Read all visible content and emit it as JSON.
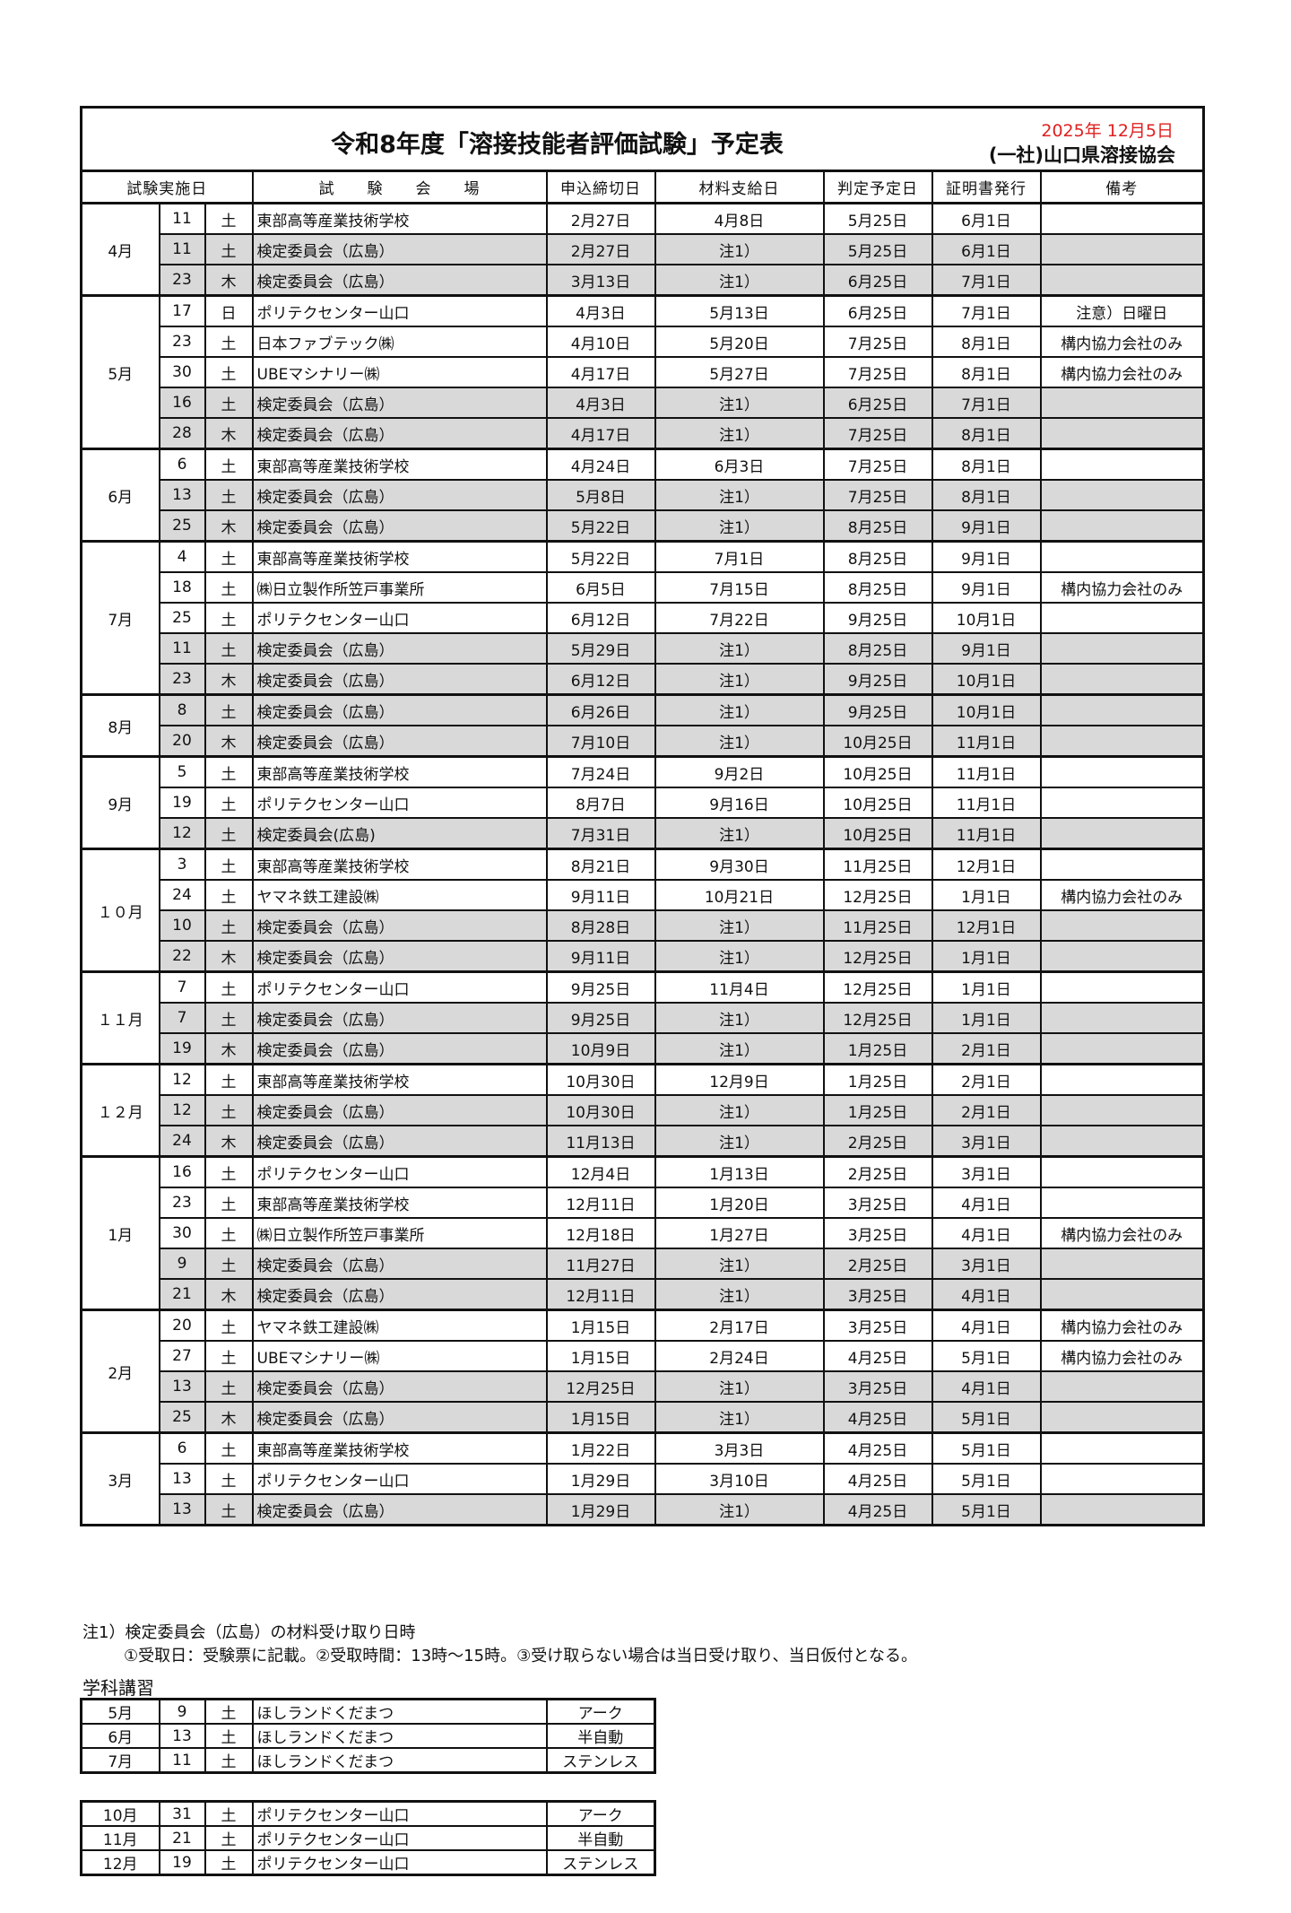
{
  "header": {
    "title": "令和8年度「溶接技能者評価試験」予定表",
    "date": "2025年 12月5日",
    "organization": "(一社)山口県溶接協会"
  },
  "columns": {
    "date": "試験実施日",
    "venue": "試　　験　　会　　場",
    "deadline": "申込締切日",
    "material": "材料支給日",
    "judgment": "判定予定日",
    "certificate": "証明書発行",
    "remarks": "備考"
  },
  "colors": {
    "date_red": "#e02020",
    "shade": "#d9d9d9"
  },
  "schedule": [
    {
      "month": "4月",
      "rows": [
        {
          "day": "11",
          "dow": "土",
          "venue": "東部高等産業技術学校",
          "deadline": "2月27日",
          "material": "4月8日",
          "judgment": "5月25日",
          "certificate": "6月1日",
          "remarks": "",
          "shaded": false
        },
        {
          "day": "11",
          "dow": "土",
          "venue": "検定委員会（広島）",
          "deadline": "2月27日",
          "material": "注1）",
          "judgment": "5月25日",
          "certificate": "6月1日",
          "remarks": "",
          "shaded": true
        },
        {
          "day": "23",
          "dow": "木",
          "venue": "検定委員会（広島）",
          "deadline": "3月13日",
          "material": "注1）",
          "judgment": "6月25日",
          "certificate": "7月1日",
          "remarks": "",
          "shaded": true
        }
      ]
    },
    {
      "month": "5月",
      "rows": [
        {
          "day": "17",
          "dow": "日",
          "venue": "ポリテクセンター山口",
          "deadline": "4月3日",
          "material": "5月13日",
          "judgment": "6月25日",
          "certificate": "7月1日",
          "remarks": "注意）日曜日",
          "shaded": false
        },
        {
          "day": "23",
          "dow": "土",
          "venue": "日本ファブテック㈱",
          "deadline": "4月10日",
          "material": "5月20日",
          "judgment": "7月25日",
          "certificate": "8月1日",
          "remarks": "構内協力会社のみ",
          "shaded": false
        },
        {
          "day": "30",
          "dow": "土",
          "venue": "UBEマシナリー㈱",
          "deadline": "4月17日",
          "material": "5月27日",
          "judgment": "7月25日",
          "certificate": "8月1日",
          "remarks": "構内協力会社のみ",
          "shaded": false
        },
        {
          "day": "16",
          "dow": "土",
          "venue": "検定委員会（広島）",
          "deadline": "4月3日",
          "material": "注1）",
          "judgment": "6月25日",
          "certificate": "7月1日",
          "remarks": "",
          "shaded": true
        },
        {
          "day": "28",
          "dow": "木",
          "venue": "検定委員会（広島）",
          "deadline": "4月17日",
          "material": "注1）",
          "judgment": "7月25日",
          "certificate": "8月1日",
          "remarks": "",
          "shaded": true
        }
      ]
    },
    {
      "month": "6月",
      "rows": [
        {
          "day": "6",
          "dow": "土",
          "venue": "東部高等産業技術学校",
          "deadline": "4月24日",
          "material": "6月3日",
          "judgment": "7月25日",
          "certificate": "8月1日",
          "remarks": "",
          "shaded": false
        },
        {
          "day": "13",
          "dow": "土",
          "venue": "検定委員会（広島）",
          "deadline": "5月8日",
          "material": "注1）",
          "judgment": "7月25日",
          "certificate": "8月1日",
          "remarks": "",
          "shaded": true
        },
        {
          "day": "25",
          "dow": "木",
          "venue": "検定委員会（広島）",
          "deadline": "5月22日",
          "material": "注1）",
          "judgment": "8月25日",
          "certificate": "9月1日",
          "remarks": "",
          "shaded": true
        }
      ]
    },
    {
      "month": "7月",
      "rows": [
        {
          "day": "4",
          "dow": "土",
          "venue": "東部高等産業技術学校",
          "deadline": "5月22日",
          "material": "7月1日",
          "judgment": "8月25日",
          "certificate": "9月1日",
          "remarks": "",
          "shaded": false
        },
        {
          "day": "18",
          "dow": "土",
          "venue": "㈱日立製作所笠戸事業所",
          "deadline": "6月5日",
          "material": "7月15日",
          "judgment": "8月25日",
          "certificate": "9月1日",
          "remarks": "構内協力会社のみ",
          "shaded": false
        },
        {
          "day": "25",
          "dow": "土",
          "venue": "ポリテクセンター山口",
          "deadline": "6月12日",
          "material": "7月22日",
          "judgment": "9月25日",
          "certificate": "10月1日",
          "remarks": "",
          "shaded": false
        },
        {
          "day": "11",
          "dow": "土",
          "venue": "検定委員会（広島）",
          "deadline": "5月29日",
          "material": "注1）",
          "judgment": "8月25日",
          "certificate": "9月1日",
          "remarks": "",
          "shaded": true
        },
        {
          "day": "23",
          "dow": "木",
          "venue": "検定委員会（広島）",
          "deadline": "6月12日",
          "material": "注1）",
          "judgment": "9月25日",
          "certificate": "10月1日",
          "remarks": "",
          "shaded": true
        }
      ]
    },
    {
      "month": "8月",
      "rows": [
        {
          "day": "8",
          "dow": "土",
          "venue": "検定委員会（広島）",
          "deadline": "6月26日",
          "material": "注1）",
          "judgment": "9月25日",
          "certificate": "10月1日",
          "remarks": "",
          "shaded": true
        },
        {
          "day": "20",
          "dow": "木",
          "venue": "検定委員会（広島）",
          "deadline": "7月10日",
          "material": "注1）",
          "judgment": "10月25日",
          "certificate": "11月1日",
          "remarks": "",
          "shaded": true
        }
      ]
    },
    {
      "month": "9月",
      "rows": [
        {
          "day": "5",
          "dow": "土",
          "venue": "東部高等産業技術学校",
          "deadline": "7月24日",
          "material": "9月2日",
          "judgment": "10月25日",
          "certificate": "11月1日",
          "remarks": "",
          "shaded": false
        },
        {
          "day": "19",
          "dow": "土",
          "venue": "ポリテクセンター山口",
          "deadline": "8月7日",
          "material": "9月16日",
          "judgment": "10月25日",
          "certificate": "11月1日",
          "remarks": "",
          "shaded": false
        },
        {
          "day": "12",
          "dow": "土",
          "venue": "検定委員会(広島)",
          "deadline": "7月31日",
          "material": "注1）",
          "judgment": "10月25日",
          "certificate": "11月1日",
          "remarks": "",
          "shaded": true
        }
      ]
    },
    {
      "month": "１０月",
      "rows": [
        {
          "day": "3",
          "dow": "土",
          "venue": "東部高等産業技術学校",
          "deadline": "8月21日",
          "material": "9月30日",
          "judgment": "11月25日",
          "certificate": "12月1日",
          "remarks": "",
          "shaded": false
        },
        {
          "day": "24",
          "dow": "土",
          "venue": "ヤマネ鉄工建設㈱",
          "deadline": "9月11日",
          "material": "10月21日",
          "judgment": "12月25日",
          "certificate": "1月1日",
          "remarks": "構内協力会社のみ",
          "shaded": false
        },
        {
          "day": "10",
          "dow": "土",
          "venue": "検定委員会（広島）",
          "deadline": "8月28日",
          "material": "注1）",
          "judgment": "11月25日",
          "certificate": "12月1日",
          "remarks": "",
          "shaded": true
        },
        {
          "day": "22",
          "dow": "木",
          "venue": "検定委員会（広島）",
          "deadline": "9月11日",
          "material": "注1）",
          "judgment": "12月25日",
          "certificate": "1月1日",
          "remarks": "",
          "shaded": true
        }
      ]
    },
    {
      "month": "１１月",
      "rows": [
        {
          "day": "7",
          "dow": "土",
          "venue": "ポリテクセンター山口",
          "deadline": "9月25日",
          "material": "11月4日",
          "judgment": "12月25日",
          "certificate": "1月1日",
          "remarks": "",
          "shaded": false
        },
        {
          "day": "7",
          "dow": "土",
          "venue": "検定委員会（広島）",
          "deadline": "9月25日",
          "material": "注1）",
          "judgment": "12月25日",
          "certificate": "1月1日",
          "remarks": "",
          "shaded": true
        },
        {
          "day": "19",
          "dow": "木",
          "venue": "検定委員会（広島）",
          "deadline": "10月9日",
          "material": "注1）",
          "judgment": "1月25日",
          "certificate": "2月1日",
          "remarks": "",
          "shaded": true
        }
      ]
    },
    {
      "month": "１２月",
      "rows": [
        {
          "day": "12",
          "dow": "土",
          "venue": "東部高等産業技術学校",
          "deadline": "10月30日",
          "material": "12月9日",
          "judgment": "1月25日",
          "certificate": "2月1日",
          "remarks": "",
          "shaded": false
        },
        {
          "day": "12",
          "dow": "土",
          "venue": "検定委員会（広島）",
          "deadline": "10月30日",
          "material": "注1）",
          "judgment": "1月25日",
          "certificate": "2月1日",
          "remarks": "",
          "shaded": true
        },
        {
          "day": "24",
          "dow": "木",
          "venue": "検定委員会（広島）",
          "deadline": "11月13日",
          "material": "注1）",
          "judgment": "2月25日",
          "certificate": "3月1日",
          "remarks": "",
          "shaded": true
        }
      ]
    },
    {
      "month": "1月",
      "rows": [
        {
          "day": "16",
          "dow": "土",
          "venue": "ポリテクセンター山口",
          "deadline": "12月4日",
          "material": "1月13日",
          "judgment": "2月25日",
          "certificate": "3月1日",
          "remarks": "",
          "shaded": false
        },
        {
          "day": "23",
          "dow": "土",
          "venue": "東部高等産業技術学校",
          "deadline": "12月11日",
          "material": "1月20日",
          "judgment": "3月25日",
          "certificate": "4月1日",
          "remarks": "",
          "shaded": false
        },
        {
          "day": "30",
          "dow": "土",
          "venue": "㈱日立製作所笠戸事業所",
          "deadline": "12月18日",
          "material": "1月27日",
          "judgment": "3月25日",
          "certificate": "4月1日",
          "remarks": "構内協力会社のみ",
          "shaded": false
        },
        {
          "day": "9",
          "dow": "土",
          "venue": "検定委員会（広島）",
          "deadline": "11月27日",
          "material": "注1）",
          "judgment": "2月25日",
          "certificate": "3月1日",
          "remarks": "",
          "shaded": true
        },
        {
          "day": "21",
          "dow": "木",
          "venue": "検定委員会（広島）",
          "deadline": "12月11日",
          "material": "注1）",
          "judgment": "3月25日",
          "certificate": "4月1日",
          "remarks": "",
          "shaded": true
        }
      ]
    },
    {
      "month": "2月",
      "rows": [
        {
          "day": "20",
          "dow": "土",
          "venue": "ヤマネ鉄工建設㈱",
          "deadline": "1月15日",
          "material": "2月17日",
          "judgment": "3月25日",
          "certificate": "4月1日",
          "remarks": "構内協力会社のみ",
          "shaded": false
        },
        {
          "day": "27",
          "dow": "土",
          "venue": "UBEマシナリー㈱",
          "deadline": "1月15日",
          "material": "2月24日",
          "judgment": "4月25日",
          "certificate": "5月1日",
          "remarks": "構内協力会社のみ",
          "shaded": false
        },
        {
          "day": "13",
          "dow": "土",
          "venue": "検定委員会（広島）",
          "deadline": "12月25日",
          "material": "注1）",
          "judgment": "3月25日",
          "certificate": "4月1日",
          "remarks": "",
          "shaded": true
        },
        {
          "day": "25",
          "dow": "木",
          "venue": "検定委員会（広島）",
          "deadline": "1月15日",
          "material": "注1）",
          "judgment": "4月25日",
          "certificate": "5月1日",
          "remarks": "",
          "shaded": true
        }
      ]
    },
    {
      "month": "3月",
      "rows": [
        {
          "day": "6",
          "dow": "土",
          "venue": "東部高等産業技術学校",
          "deadline": "1月22日",
          "material": "3月3日",
          "judgment": "4月25日",
          "certificate": "5月1日",
          "remarks": "",
          "shaded": false
        },
        {
          "day": "13",
          "dow": "土",
          "venue": "ポリテクセンター山口",
          "deadline": "1月29日",
          "material": "3月10日",
          "judgment": "4月25日",
          "certificate": "5月1日",
          "remarks": "",
          "shaded": false
        },
        {
          "day": "13",
          "dow": "土",
          "venue": "検定委員会（広島）",
          "deadline": "1月29日",
          "material": "注1）",
          "judgment": "4月25日",
          "certificate": "5月1日",
          "remarks": "",
          "shaded": true
        }
      ]
    }
  ],
  "notes": {
    "line1": "注1）検定委員会（広島）の材料受け取り日時",
    "line2": "①受取日：受験票に記載。②受取時間：13時～15時。③受け取らない場合は当日受け取り、当日仮付となる。"
  },
  "lectures": {
    "title": "学科講習",
    "tables": [
      [
        {
          "month": "5月",
          "day": "9",
          "dow": "土",
          "venue": "ほしランドくだまつ",
          "type": "アーク"
        },
        {
          "month": "6月",
          "day": "13",
          "dow": "土",
          "venue": "ほしランドくだまつ",
          "type": "半自動"
        },
        {
          "month": "7月",
          "day": "11",
          "dow": "土",
          "venue": "ほしランドくだまつ",
          "type": "ステンレス"
        }
      ],
      [
        {
          "month": "10月",
          "day": "31",
          "dow": "土",
          "venue": "ポリテクセンター山口",
          "type": "アーク"
        },
        {
          "month": "11月",
          "day": "21",
          "dow": "土",
          "venue": "ポリテクセンター山口",
          "type": "半自動"
        },
        {
          "month": "12月",
          "day": "19",
          "dow": "土",
          "venue": "ポリテクセンター山口",
          "type": "ステンレス"
        }
      ]
    ]
  }
}
